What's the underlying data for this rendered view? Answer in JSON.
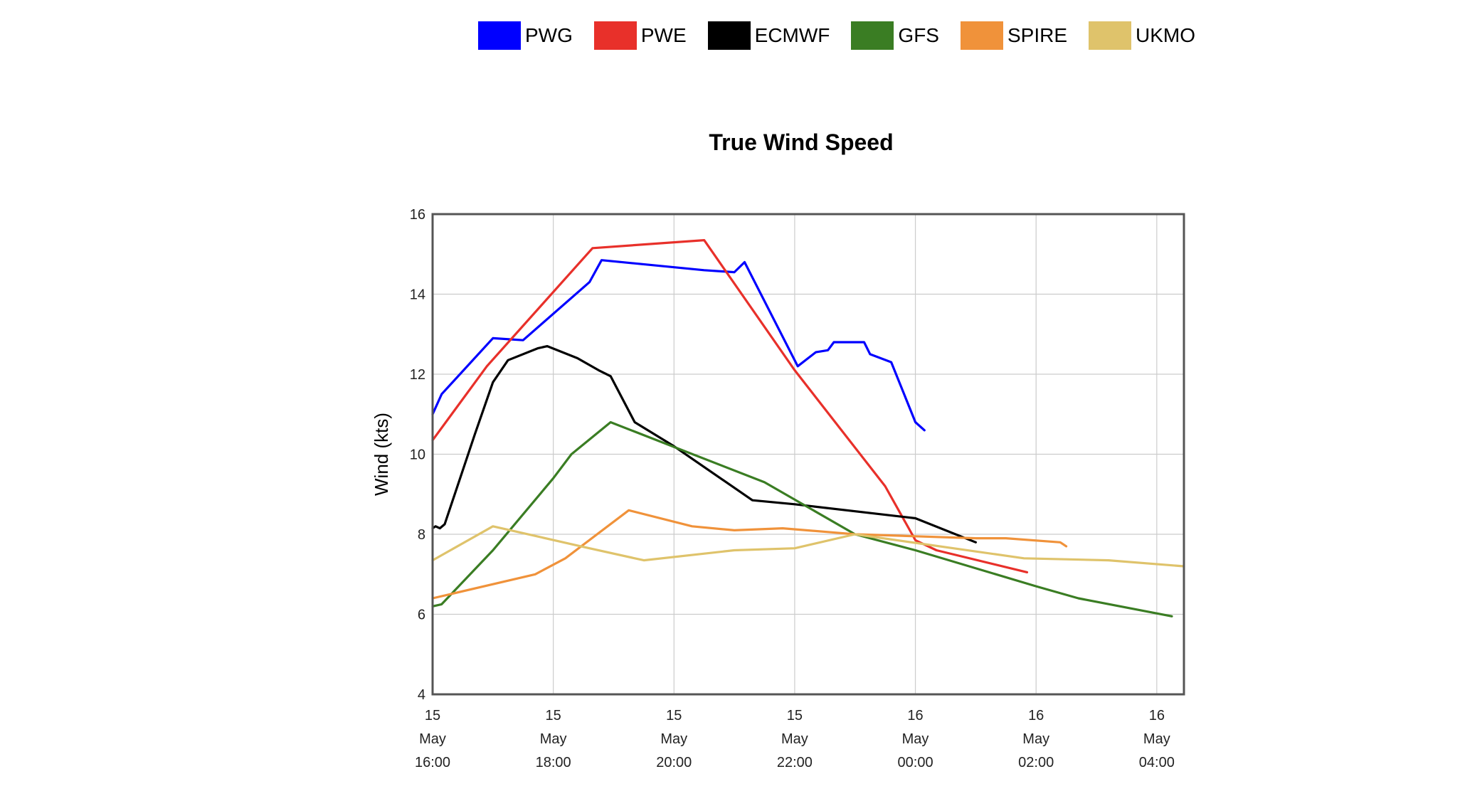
{
  "chart_data": {
    "type": "line",
    "title": "True Wind Speed",
    "xlabel": "",
    "ylabel": "Wind (kts)",
    "ylim": [
      4,
      16
    ],
    "yticks": [
      4,
      6,
      8,
      10,
      12,
      14,
      16
    ],
    "x_unit": "hours",
    "xlim": [
      16.0,
      28.45
    ],
    "xticks": [
      {
        "value": 16,
        "lines": [
          "15",
          "May",
          "16:00"
        ]
      },
      {
        "value": 18,
        "lines": [
          "15",
          "May",
          "18:00"
        ]
      },
      {
        "value": 20,
        "lines": [
          "15",
          "May",
          "20:00"
        ]
      },
      {
        "value": 22,
        "lines": [
          "15",
          "May",
          "22:00"
        ]
      },
      {
        "value": 24,
        "lines": [
          "16",
          "May",
          "00:00"
        ]
      },
      {
        "value": 26,
        "lines": [
          "16",
          "May",
          "02:00"
        ]
      },
      {
        "value": 28,
        "lines": [
          "16",
          "May",
          "04:00"
        ]
      }
    ],
    "grid": true,
    "legend_position": "top",
    "series": [
      {
        "name": "PWG",
        "color": "#0000ff",
        "points": [
          [
            16.0,
            11.0
          ],
          [
            16.15,
            11.5
          ],
          [
            17.0,
            12.9
          ],
          [
            17.5,
            12.85
          ],
          [
            18.6,
            14.3
          ],
          [
            18.8,
            14.85
          ],
          [
            20.5,
            14.6
          ],
          [
            21.0,
            14.55
          ],
          [
            21.17,
            14.8
          ],
          [
            22.05,
            12.2
          ],
          [
            22.35,
            12.55
          ],
          [
            22.55,
            12.6
          ],
          [
            22.65,
            12.8
          ],
          [
            23.15,
            12.8
          ],
          [
            23.25,
            12.5
          ],
          [
            23.6,
            12.3
          ],
          [
            24.0,
            10.8
          ],
          [
            24.15,
            10.6
          ]
        ]
      },
      {
        "name": "PWE",
        "color": "#e8302a",
        "points": [
          [
            16.0,
            10.35
          ],
          [
            16.9,
            12.2
          ],
          [
            18.65,
            15.15
          ],
          [
            20.5,
            15.35
          ],
          [
            22.0,
            12.1
          ],
          [
            23.5,
            9.2
          ],
          [
            24.0,
            7.85
          ],
          [
            24.35,
            7.6
          ],
          [
            25.85,
            7.05
          ]
        ]
      },
      {
        "name": "ECMWF",
        "color": "#000000",
        "points": [
          [
            16.0,
            8.15
          ],
          [
            16.05,
            8.2
          ],
          [
            16.12,
            8.15
          ],
          [
            16.2,
            8.25
          ],
          [
            16.7,
            10.5
          ],
          [
            17.0,
            11.8
          ],
          [
            17.25,
            12.35
          ],
          [
            17.75,
            12.65
          ],
          [
            17.9,
            12.7
          ],
          [
            18.4,
            12.4
          ],
          [
            18.75,
            12.1
          ],
          [
            18.95,
            11.95
          ],
          [
            19.35,
            10.8
          ],
          [
            20.0,
            10.2
          ],
          [
            21.3,
            8.85
          ],
          [
            22.0,
            8.75
          ],
          [
            24.0,
            8.4
          ],
          [
            25.0,
            7.8
          ]
        ]
      },
      {
        "name": "GFS",
        "color": "#3a7d23",
        "points": [
          [
            16.0,
            6.2
          ],
          [
            16.15,
            6.25
          ],
          [
            17.0,
            7.6
          ],
          [
            18.0,
            9.4
          ],
          [
            18.3,
            10.0
          ],
          [
            18.95,
            10.8
          ],
          [
            21.5,
            9.3
          ],
          [
            23.0,
            8.0
          ],
          [
            24.0,
            7.6
          ],
          [
            26.0,
            6.7
          ],
          [
            26.7,
            6.4
          ],
          [
            28.25,
            5.95
          ]
        ]
      },
      {
        "name": "SPIRE",
        "color": "#f0923a",
        "points": [
          [
            16.0,
            6.4
          ],
          [
            17.7,
            7.0
          ],
          [
            18.2,
            7.4
          ],
          [
            19.25,
            8.6
          ],
          [
            20.3,
            8.2
          ],
          [
            21.0,
            8.1
          ],
          [
            21.8,
            8.15
          ],
          [
            22.6,
            8.05
          ],
          [
            23.0,
            8.0
          ],
          [
            24.0,
            7.95
          ],
          [
            25.0,
            7.9
          ],
          [
            25.5,
            7.9
          ],
          [
            26.4,
            7.8
          ],
          [
            26.5,
            7.7
          ]
        ]
      },
      {
        "name": "UKMO",
        "color": "#dfc36b",
        "points": [
          [
            16.0,
            7.35
          ],
          [
            17.0,
            8.2
          ],
          [
            18.6,
            7.65
          ],
          [
            19.5,
            7.35
          ],
          [
            21.0,
            7.6
          ],
          [
            22.0,
            7.65
          ],
          [
            23.0,
            8.0
          ],
          [
            25.8,
            7.4
          ],
          [
            27.2,
            7.35
          ],
          [
            28.45,
            7.2
          ]
        ]
      }
    ]
  }
}
